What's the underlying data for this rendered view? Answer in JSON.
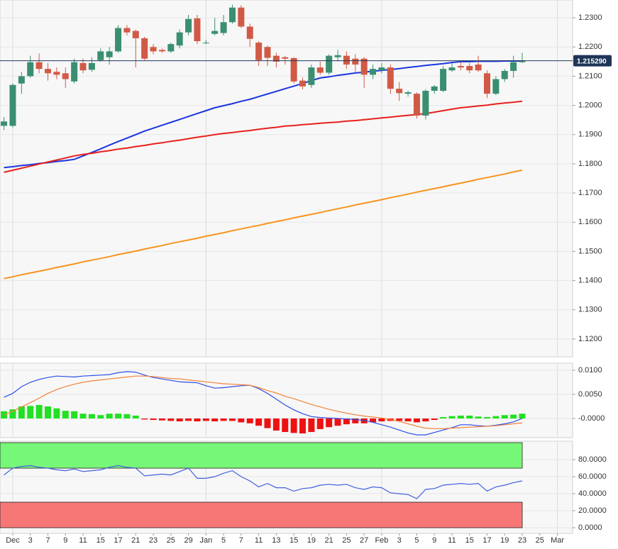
{
  "chart_data": [
    {
      "type": "candlestick",
      "ylim": [
        1.1139,
        1.2361
      ],
      "yticks": [
        {
          "value": 1.12,
          "label": "1.1200"
        },
        {
          "value": 1.13,
          "label": "1.1300"
        },
        {
          "value": 1.14,
          "label": "1.1400"
        },
        {
          "value": 1.15,
          "label": "1.1500"
        },
        {
          "value": 1.16,
          "label": "1.1600"
        },
        {
          "value": 1.17,
          "label": "1.1700"
        },
        {
          "value": 1.18,
          "label": "1.1800"
        },
        {
          "value": 1.19,
          "label": "1.1900"
        },
        {
          "value": 1.2,
          "label": "1.2000"
        },
        {
          "value": 1.21,
          "label": "1.2100"
        },
        {
          "value": 1.22,
          "label": "1.2200"
        },
        {
          "value": 1.23,
          "label": "1.2300"
        }
      ],
      "grid": true,
      "up_color": "#3a8f70",
      "down_color": "#d05a45",
      "open": [
        1.193,
        1.193,
        1.2075,
        1.21,
        1.2148,
        1.2125,
        1.2115,
        1.211,
        1.2082,
        1.2145,
        1.2122,
        1.2155,
        1.2165,
        1.2185,
        1.2265,
        1.2255,
        1.223,
        1.22,
        1.219,
        1.2185,
        1.2205,
        1.225,
        1.2298,
        1.2215,
        1.2245,
        1.2248,
        1.2285,
        1.2335,
        1.227,
        1.2215,
        1.22,
        1.217,
        1.2165,
        1.2162,
        1.2085,
        1.207,
        1.213,
        1.2112,
        1.2165,
        1.217,
        1.216,
        1.216,
        1.2105,
        1.212,
        1.213,
        1.2057,
        1.204,
        1.204,
        1.1965,
        1.205,
        1.205,
        1.212,
        1.2135,
        1.2135,
        1.214,
        1.211,
        1.204,
        1.209,
        1.2118,
        1.2148,
        null,
        null,
        null,
        null
      ],
      "high": [
        1.196,
        1.2075,
        1.2115,
        1.217,
        1.2178,
        1.2145,
        1.213,
        1.213,
        1.216,
        1.216,
        1.2165,
        1.2195,
        1.22,
        1.2275,
        1.2275,
        1.226,
        1.2235,
        1.221,
        1.2195,
        1.2215,
        1.226,
        1.231,
        1.231,
        1.2225,
        1.23,
        1.231,
        1.2345,
        1.2343,
        1.228,
        1.222,
        1.2205,
        1.218,
        1.217,
        1.2165,
        1.2095,
        1.214,
        1.215,
        1.2175,
        1.219,
        1.2185,
        1.2175,
        1.2165,
        1.214,
        1.2145,
        1.214,
        1.208,
        1.205,
        1.2045,
        1.2055,
        1.207,
        1.2135,
        1.2145,
        1.215,
        1.2145,
        1.217,
        1.212,
        1.21,
        1.2125,
        1.217,
        1.218,
        null,
        null,
        null,
        null
      ],
      "low": [
        1.1915,
        1.1925,
        1.204,
        1.2095,
        1.211,
        1.2085,
        1.209,
        1.206,
        1.2075,
        1.211,
        1.2115,
        1.215,
        1.214,
        1.218,
        1.224,
        1.213,
        1.2155,
        1.2175,
        1.218,
        1.218,
        1.2195,
        1.224,
        1.221,
        1.221,
        1.224,
        1.224,
        1.228,
        1.2265,
        1.22,
        1.2135,
        1.2135,
        1.213,
        1.214,
        1.2075,
        1.2055,
        1.206,
        1.2105,
        1.2105,
        1.215,
        1.2125,
        1.2115,
        1.206,
        1.209,
        1.211,
        1.204,
        1.2015,
        1.203,
        1.1955,
        1.1952,
        1.204,
        1.2045,
        1.2115,
        1.212,
        1.211,
        1.2115,
        1.2025,
        1.2035,
        1.208,
        1.2095,
        1.2145,
        null,
        null,
        null,
        null
      ],
      "close": [
        1.1945,
        1.207,
        1.21,
        1.2148,
        1.2125,
        1.211,
        1.2105,
        1.209,
        1.2148,
        1.212,
        1.2145,
        1.2185,
        1.2185,
        1.2265,
        1.225,
        1.223,
        1.216,
        1.2185,
        1.2185,
        1.221,
        1.225,
        1.2296,
        1.222,
        1.2215,
        1.2255,
        1.2285,
        1.2335,
        1.227,
        1.2228,
        1.2155,
        1.2163,
        1.215,
        1.216,
        1.2082,
        1.2065,
        1.213,
        1.2112,
        1.217,
        1.2172,
        1.214,
        1.214,
        1.2105,
        1.2125,
        1.213,
        1.2057,
        1.2042,
        1.2045,
        1.1965,
        1.205,
        1.2065,
        1.2125,
        1.213,
        1.213,
        1.212,
        1.212,
        1.204,
        1.209,
        1.2118,
        1.2148,
        1.2153,
        null,
        null,
        null,
        null
      ],
      "series": [
        {
          "color": "#1a35e0",
          "values": [
            1.1787,
            1.179,
            1.1794,
            1.1797,
            1.1801,
            1.1804,
            1.1808,
            1.1811,
            1.1815,
            1.1827,
            1.1839,
            1.1851,
            1.1864,
            1.1876,
            1.1888,
            1.19,
            1.1912,
            1.1922,
            1.1932,
            1.1942,
            1.1952,
            1.1962,
            1.1972,
            1.1982,
            1.1992,
            1.1999,
            1.2006,
            1.2014,
            1.2021,
            1.203,
            1.2039,
            1.2048,
            1.2057,
            1.2066,
            1.2075,
            1.2085,
            1.2094,
            1.2098,
            1.2103,
            1.2107,
            1.2111,
            1.2114,
            1.2117,
            1.212,
            1.2123,
            1.2126,
            1.213,
            1.2133,
            1.2137,
            1.214,
            1.2143,
            1.2147,
            1.215,
            1.215,
            1.2151,
            1.2151,
            1.2151,
            1.2152,
            1.2152,
            1.2152,
            null,
            null,
            null,
            null
          ]
        },
        {
          "color": "#e8201c",
          "values": [
            1.1771,
            1.1778,
            1.1785,
            1.1792,
            1.1799,
            1.1806,
            1.1813,
            1.182,
            1.1827,
            1.1832,
            1.1836,
            1.1841,
            1.1845,
            1.185,
            1.1854,
            1.1859,
            1.1863,
            1.1868,
            1.1872,
            1.1877,
            1.1881,
            1.1886,
            1.1891,
            1.1895,
            1.19,
            1.1904,
            1.1907,
            1.1911,
            1.1914,
            1.1918,
            1.1922,
            1.1925,
            1.1929,
            1.1931,
            1.1934,
            1.1936,
            1.1939,
            1.1941,
            1.1943,
            1.1946,
            1.1948,
            1.1951,
            1.1954,
            1.1957,
            1.196,
            1.1963,
            1.1966,
            1.1969,
            1.1972,
            1.1977,
            1.1982,
            1.1987,
            1.1992,
            1.1995,
            1.1998,
            1.2001,
            1.2005,
            1.2008,
            1.2011,
            1.2014,
            null,
            null,
            null,
            null
          ]
        },
        {
          "color": "#f7941d",
          "values": [
            1.1407,
            1.1413,
            1.142,
            1.1426,
            1.1432,
            1.1438,
            1.1445,
            1.1451,
            1.1457,
            1.1464,
            1.147,
            1.1476,
            1.1482,
            1.1489,
            1.1495,
            1.1501,
            1.1508,
            1.1514,
            1.152,
            1.1527,
            1.1533,
            1.1539,
            1.1545,
            1.1552,
            1.1558,
            1.1564,
            1.1571,
            1.1577,
            1.1583,
            1.1589,
            1.1596,
            1.1602,
            1.1608,
            1.1615,
            1.1621,
            1.1627,
            1.1633,
            1.164,
            1.1646,
            1.1652,
            1.1659,
            1.1665,
            1.1671,
            1.1677,
            1.1684,
            1.169,
            1.1696,
            1.1703,
            1.1709,
            1.1715,
            1.1721,
            1.1728,
            1.1734,
            1.174,
            1.1747,
            1.1753,
            1.1759,
            1.1765,
            1.1772,
            1.1778,
            null,
            null,
            null,
            null
          ]
        }
      ],
      "last_price": {
        "value": 1.21529,
        "label": "1.215290"
      },
      "last_price_color": "#1f3557"
    },
    {
      "type": "macd",
      "ylim": [
        -0.00397,
        0.01147
      ],
      "yticks": [
        {
          "value": 0.01,
          "label": "0.0100"
        },
        {
          "value": 0.005,
          "label": "0.0050"
        },
        {
          "value": 0,
          "label": "-0.0000"
        }
      ],
      "grid": true,
      "pos_color": "#22e022",
      "neg_color": "#ee1111",
      "histogram": [
        0.0015,
        0.0019,
        0.0025,
        0.0026,
        0.0028,
        0.0025,
        0.0021,
        0.0016,
        0.0015,
        0.001,
        0.0009,
        0.0007,
        0.001,
        0.001,
        0.0009,
        0.0006,
        -0.0002,
        -0.0003,
        -0.0004,
        -0.0005,
        -0.0006,
        -0.0005,
        -0.0006,
        -0.0005,
        -0.0006,
        -0.0005,
        -0.0005,
        -0.0008,
        -0.001,
        -0.0015,
        -0.002,
        -0.0025,
        -0.0028,
        -0.003,
        -0.0031,
        -0.0028,
        -0.0022,
        -0.0018,
        -0.0015,
        -0.0012,
        -0.001,
        -0.001,
        -0.0008,
        -0.0006,
        -0.0005,
        -0.0005,
        -0.0006,
        -0.0008,
        -0.0006,
        -0.0003,
        0.0003,
        0.0005,
        0.0006,
        0.0006,
        0.0004,
        0.0003,
        0.0005,
        0.0007,
        0.0008,
        0.001,
        null,
        null,
        null,
        null
      ],
      "series": [
        {
          "color": "#2b4ee8",
          "values": [
            0.0044,
            0.0052,
            0.0066,
            0.0075,
            0.0081,
            0.0085,
            0.0088,
            0.0087,
            0.0086,
            0.0088,
            0.0089,
            0.009,
            0.0091,
            0.0095,
            0.0097,
            0.0096,
            0.009,
            0.0085,
            0.0082,
            0.0079,
            0.0076,
            0.0075,
            0.0074,
            0.0068,
            0.0063,
            0.0064,
            0.0066,
            0.0068,
            0.0069,
            0.0062,
            0.0052,
            0.004,
            0.0028,
            0.0018,
            0.001,
            0.0004,
            0.0002,
            0.0001,
            0,
            -0.0001,
            -0.0002,
            -0.0004,
            -0.0008,
            -0.0013,
            -0.0018,
            -0.0024,
            -0.003,
            -0.0034,
            -0.0034,
            -0.0029,
            -0.0024,
            -0.0019,
            -0.0013,
            -0.0013,
            -0.0015,
            -0.0016,
            -0.0014,
            -0.0011,
            -0.0007,
            0,
            null,
            null,
            null,
            null
          ]
        },
        {
          "color": "#f0843a",
          "values": [
            0.0007,
            0.0015,
            0.0024,
            0.0033,
            0.0042,
            0.0052,
            0.006,
            0.0066,
            0.0071,
            0.0075,
            0.0078,
            0.008,
            0.0082,
            0.0084,
            0.0086,
            0.0088,
            0.0088,
            0.0087,
            0.0085,
            0.0083,
            0.0082,
            0.008,
            0.0078,
            0.0076,
            0.0074,
            0.0072,
            0.0071,
            0.007,
            0.0069,
            0.0064,
            0.0058,
            0.0053,
            0.0046,
            0.0041,
            0.0035,
            0.0029,
            0.0024,
            0.0019,
            0.0015,
            0.0011,
            0.0008,
            0.0005,
            0.0003,
            0.0001,
            -0.0002,
            -0.0006,
            -0.0011,
            -0.0016,
            -0.002,
            -0.0021,
            -0.0021,
            -0.002,
            -0.0019,
            -0.0018,
            -0.0017,
            -0.0016,
            -0.0015,
            -0.0013,
            -0.0011,
            -0.0009,
            null,
            null,
            null,
            null
          ]
        }
      ]
    },
    {
      "type": "rsi",
      "ylim": [
        -6.67,
        101.7
      ],
      "yticks": [
        {
          "value": 0,
          "label": "0.0000"
        },
        {
          "value": 20,
          "label": "20.0000"
        },
        {
          "value": 40,
          "label": "40.0000"
        },
        {
          "value": 60,
          "label": "60.0000"
        },
        {
          "value": 80,
          "label": "80.0000"
        }
      ],
      "grid": true,
      "bands": [
        {
          "range": [
            70,
            100
          ],
          "color": "#77f777"
        },
        {
          "range": [
            0,
            30
          ],
          "color": "#f77777"
        }
      ],
      "categories": [
        null,
        "Dec",
        null,
        "3",
        null,
        "7",
        null,
        "9",
        null,
        "11",
        null,
        "15",
        null,
        "17",
        null,
        "21",
        null,
        "23",
        null,
        "25",
        null,
        "29",
        null,
        "Jan",
        null,
        "5",
        null,
        "7",
        null,
        "11",
        null,
        "13",
        null,
        "15",
        null,
        "19",
        null,
        "21",
        null,
        "25",
        null,
        "27",
        null,
        "Feb",
        null,
        "3",
        null,
        "5",
        null,
        "9",
        null,
        "11",
        null,
        "15",
        null,
        "17",
        null,
        "19",
        null,
        "23",
        null,
        "25",
        null,
        "Mar"
      ],
      "series": [
        {
          "color": "#4060e0",
          "values": [
            62,
            70,
            72,
            73,
            71,
            70,
            68,
            67,
            69,
            66,
            67,
            68,
            71,
            73,
            71,
            70,
            61,
            62,
            63,
            62,
            66,
            70,
            58,
            58,
            60,
            64,
            67,
            60,
            55,
            48,
            52,
            47,
            47,
            43,
            46,
            47,
            50,
            51,
            50,
            51,
            47,
            45,
            48,
            47,
            41,
            40,
            39,
            34,
            45,
            46,
            50,
            51,
            52,
            51,
            52,
            43,
            48,
            50,
            53,
            55,
            null,
            null,
            null,
            null
          ]
        }
      ]
    }
  ]
}
